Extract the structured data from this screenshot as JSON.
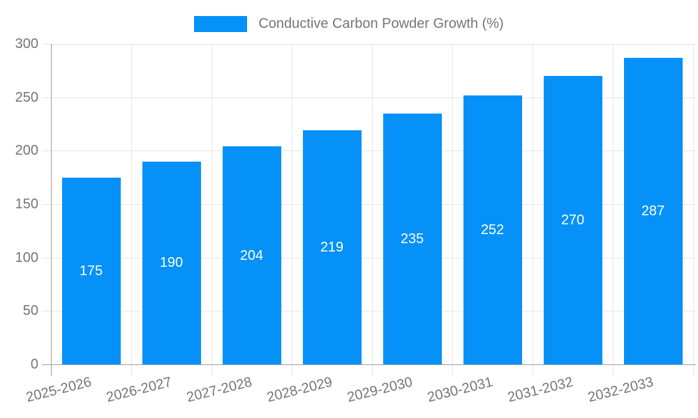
{
  "legend": {
    "label": "Conductive Carbon Powder Growth (%)"
  },
  "chart_data": {
    "type": "bar",
    "title": "Conductive Carbon Powder Growth (%)",
    "categories": [
      "2025-2026",
      "2026-2027",
      "2027-2028",
      "2028-2029",
      "2029-2030",
      "2030-2031",
      "2031-2032",
      "2032-2033"
    ],
    "values": [
      175,
      190,
      204,
      219,
      235,
      252,
      270,
      287
    ],
    "xlabel": "",
    "ylabel": "",
    "ylim": [
      0,
      300
    ],
    "yticks": [
      0,
      50,
      100,
      150,
      200,
      250,
      300
    ],
    "grid": true,
    "legend_position": "top",
    "x_label_rotation_deg": -14,
    "colors": {
      "bar": "#0591f8",
      "grid": "#e6e6e6",
      "axis": "#9e9e9e",
      "tick_label": "#757575",
      "value_label": "#ffffff"
    }
  }
}
